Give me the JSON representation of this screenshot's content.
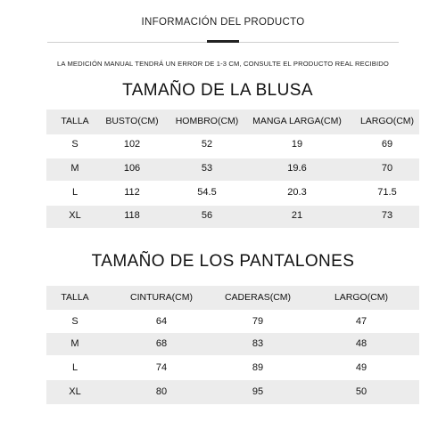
{
  "header": {
    "title": "INFORMACIÓN DEL PRODUCTO",
    "notice": "LA MEDICIÓN MANUAL TENDRÁ UN ERROR DE 1-3 CM, CONSULTE EL PRODUCTO REAL RECIBIDO"
  },
  "blusa": {
    "title": "TAMAÑO DE LA BLUSA",
    "headers": [
      "TALLA",
      "BUSTO(CM)",
      "HOMBRO(CM)",
      "MANGA LARGA(CM)",
      "LARGO(CM)"
    ],
    "rows": [
      [
        "S",
        "102",
        "52",
        "19",
        "69"
      ],
      [
        "M",
        "106",
        "53",
        "19.6",
        "70"
      ],
      [
        "L",
        "112",
        "54.5",
        "20.3",
        "71.5"
      ],
      [
        "XL",
        "118",
        "56",
        "21",
        "73"
      ]
    ]
  },
  "pantalones": {
    "title": "TAMAÑO DE LOS PANTALONES",
    "headers": [
      "TALLA",
      "CINTURA(CM)",
      "CADERAS(CM)",
      "LARGO(CM)"
    ],
    "rows": [
      [
        "S",
        "64",
        "79",
        "47"
      ],
      [
        "M",
        "68",
        "83",
        "48"
      ],
      [
        "L",
        "74",
        "89",
        "49"
      ],
      [
        "XL",
        "80",
        "95",
        "50"
      ]
    ]
  },
  "colors": {
    "band": "#ececec",
    "text": "#1a1a1a",
    "accent_bar": "#222222"
  }
}
